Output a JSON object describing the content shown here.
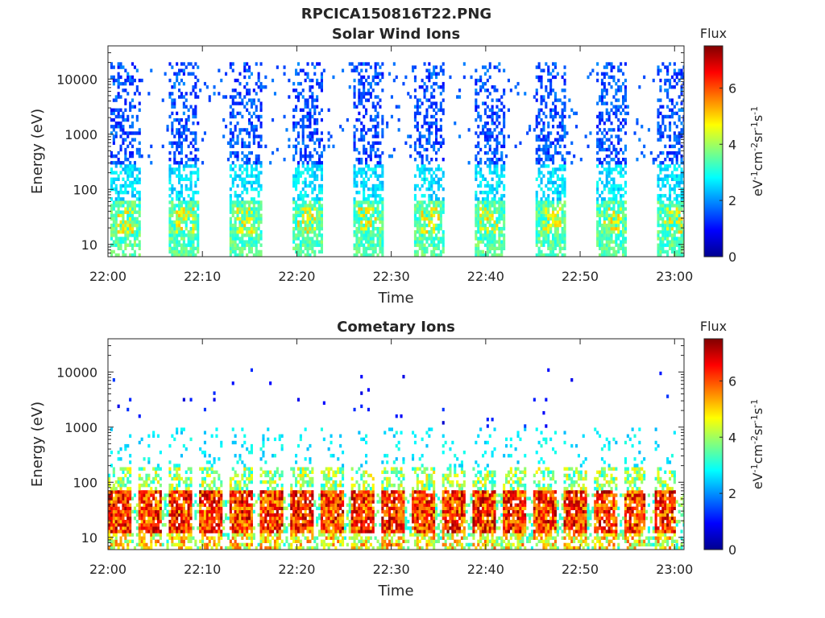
{
  "figure": {
    "title": "RPCICA150816T22.PNG"
  },
  "colors": {
    "colormap": [
      "#00008f",
      "#0000ff",
      "#0080ff",
      "#00ffff",
      "#80ff80",
      "#ffff00",
      "#ff8000",
      "#ff0000",
      "#800000"
    ]
  },
  "chart_data": [
    {
      "type": "heatmap",
      "title": "Solar Wind Ions",
      "xlabel": "Time",
      "ylabel": "Energy (eV)",
      "yscale": "log",
      "xlim": [
        "22:00",
        "23:01"
      ],
      "ylim": [
        6,
        40000
      ],
      "xticks": [
        "22:00",
        "22:10",
        "22:20",
        "22:30",
        "22:40",
        "22:50",
        "23:00"
      ],
      "yticks": [
        "10",
        "100",
        "1000",
        "10000"
      ],
      "colorbar": {
        "label": "Flux",
        "units": "eV",
        "range": [
          0,
          7.5
        ],
        "ticks": [
          "0",
          "2",
          "4",
          "6"
        ]
      },
      "pattern": "periodic energy sweeps, ~6.4 min period, sparse blue flux 100 eV–10 keV, green/yellow core at 15–50 eV",
      "burst_start_minutes": [
        0.1,
        6.3,
        12.8,
        19.3,
        25.7,
        32.2,
        38.6,
        45.1,
        51.5,
        58.0
      ],
      "burst_duration_minutes": 3.3,
      "core_energy_eV": [
        15,
        50
      ],
      "core_flux": 4.5,
      "background_flux": 1.8,
      "peak_flux": 5.2
    },
    {
      "type": "heatmap",
      "title": "Cometary Ions",
      "xlabel": "Time",
      "ylabel": "Energy (eV)",
      "yscale": "log",
      "xlim": [
        "22:00",
        "23:01"
      ],
      "ylim": [
        6,
        40000
      ],
      "xticks": [
        "22:00",
        "22:10",
        "22:20",
        "22:30",
        "22:40",
        "22:50",
        "23:00"
      ],
      "yticks": [
        "10",
        "100",
        "1000",
        "10000"
      ],
      "colorbar": {
        "label": "Flux",
        "units": "eV",
        "range": [
          0,
          7.5
        ],
        "ticks": [
          "0",
          "2",
          "4",
          "6"
        ]
      },
      "pattern": "intense low-energy cometary ion flux 8–80 eV (red), tails to ~200 eV, sparse points up to 10 keV",
      "core_energy_eV": [
        8,
        80
      ],
      "core_flux": 6.8,
      "peak_flux": 7.4,
      "background_flux": 2.5
    }
  ]
}
